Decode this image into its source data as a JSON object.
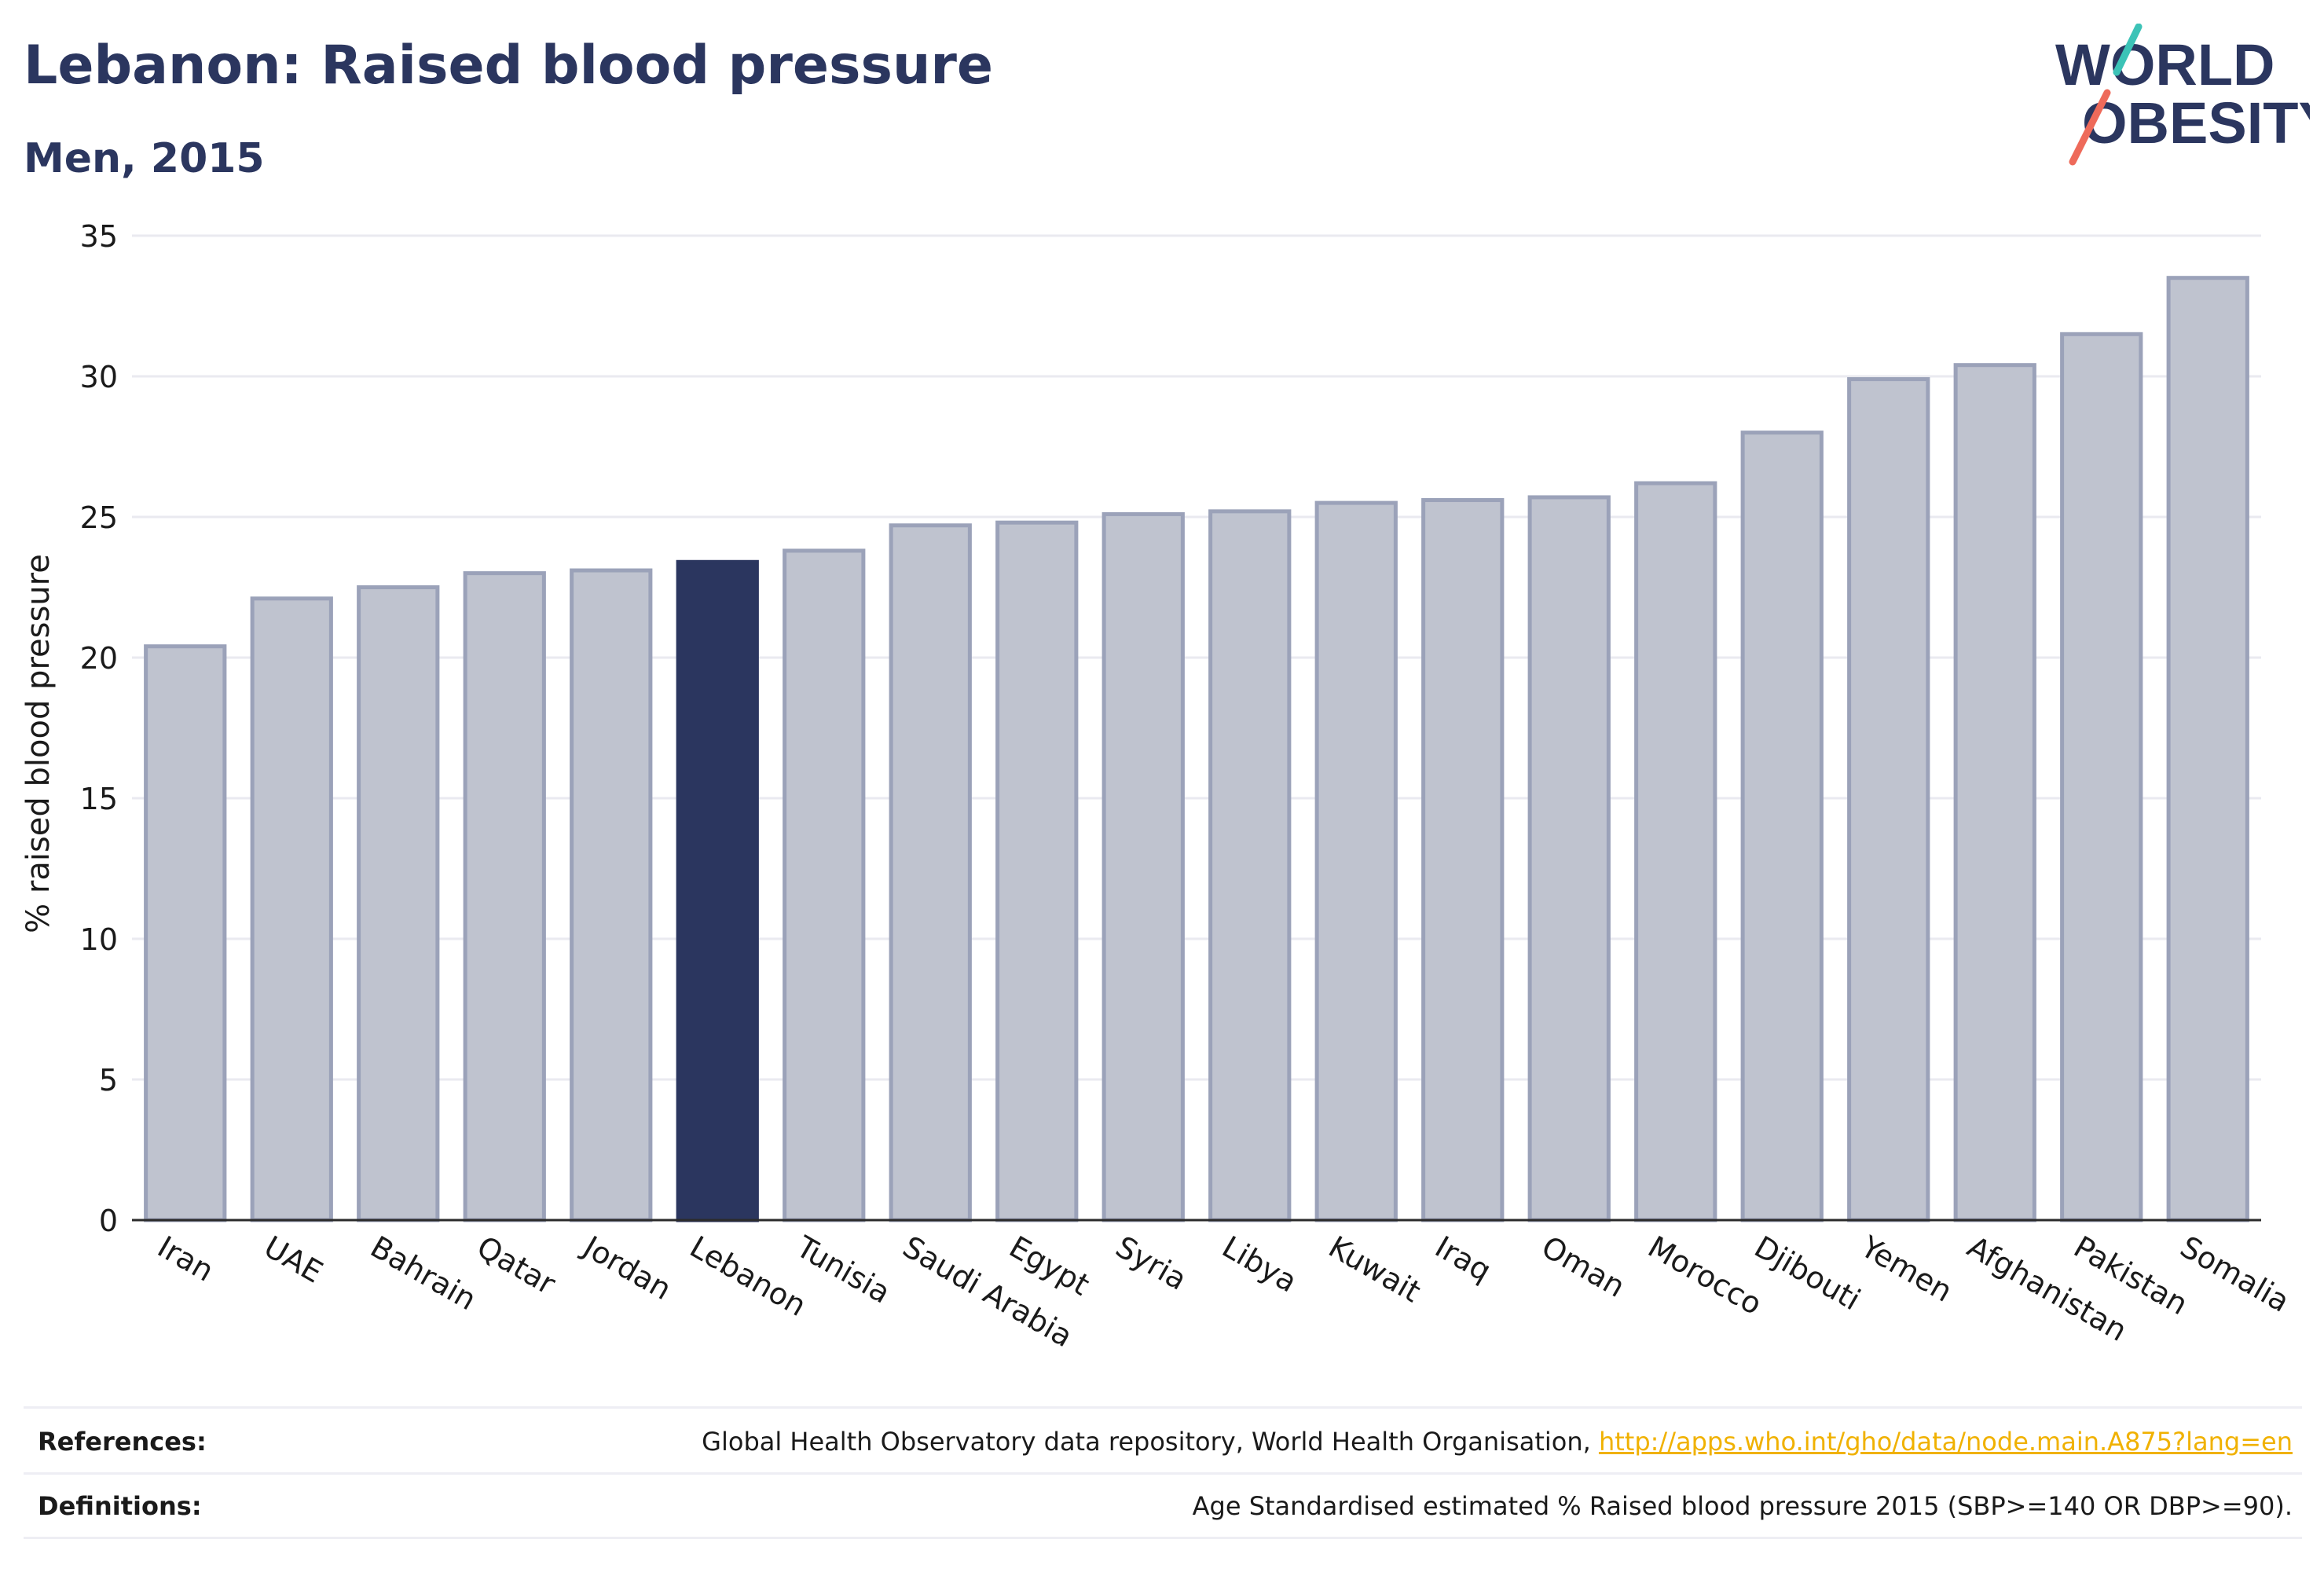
{
  "header": {
    "title": "Lebanon: Raised blood pressure",
    "subtitle": "Men, 2015"
  },
  "logo": {
    "line1": "WORLD",
    "line2": "OBESITY"
  },
  "colors": {
    "highlight": "#2b365f",
    "bar": "#bfc3cf",
    "bar_edge": "#9ba2b9",
    "grid": "#eaeaf0",
    "text": "#1a1a1a",
    "link": "#f0b100",
    "logo_teal": "#3cc3b7",
    "logo_coral": "#ee6a5a"
  },
  "chart_data": {
    "type": "bar",
    "title": "Lebanon: Raised blood pressure",
    "subtitle": "Men, 2015",
    "xlabel": "",
    "ylabel": "% raised blood pressure",
    "ylim": [
      0,
      35
    ],
    "yticks": [
      0,
      5,
      10,
      15,
      20,
      25,
      30,
      35
    ],
    "grid": true,
    "highlight": "Lebanon",
    "categories": [
      "Iran",
      "UAE",
      "Bahrain",
      "Qatar",
      "Jordan",
      "Lebanon",
      "Tunisia",
      "Saudi Arabia",
      "Egypt",
      "Syria",
      "Libya",
      "Kuwait",
      "Iraq",
      "Oman",
      "Morocco",
      "Djibouti",
      "Yemen",
      "Afghanistan",
      "Pakistan",
      "Somalia"
    ],
    "values": [
      20.4,
      22.1,
      22.5,
      23.0,
      23.1,
      23.4,
      23.8,
      24.7,
      24.8,
      25.1,
      25.2,
      25.5,
      25.6,
      25.7,
      26.2,
      28.0,
      29.9,
      30.4,
      31.5,
      33.5
    ]
  },
  "footer": {
    "references_label": "References:",
    "references_text": "Global Health Observatory data repository, World Health Organisation, ",
    "references_link": "http://apps.who.int/gho/data/node.main.A875?lang=en",
    "definitions_label": "Definitions:",
    "definitions_text": "Age Standardised estimated % Raised blood pressure 2015 (SBP>=140 OR DBP>=90)."
  }
}
